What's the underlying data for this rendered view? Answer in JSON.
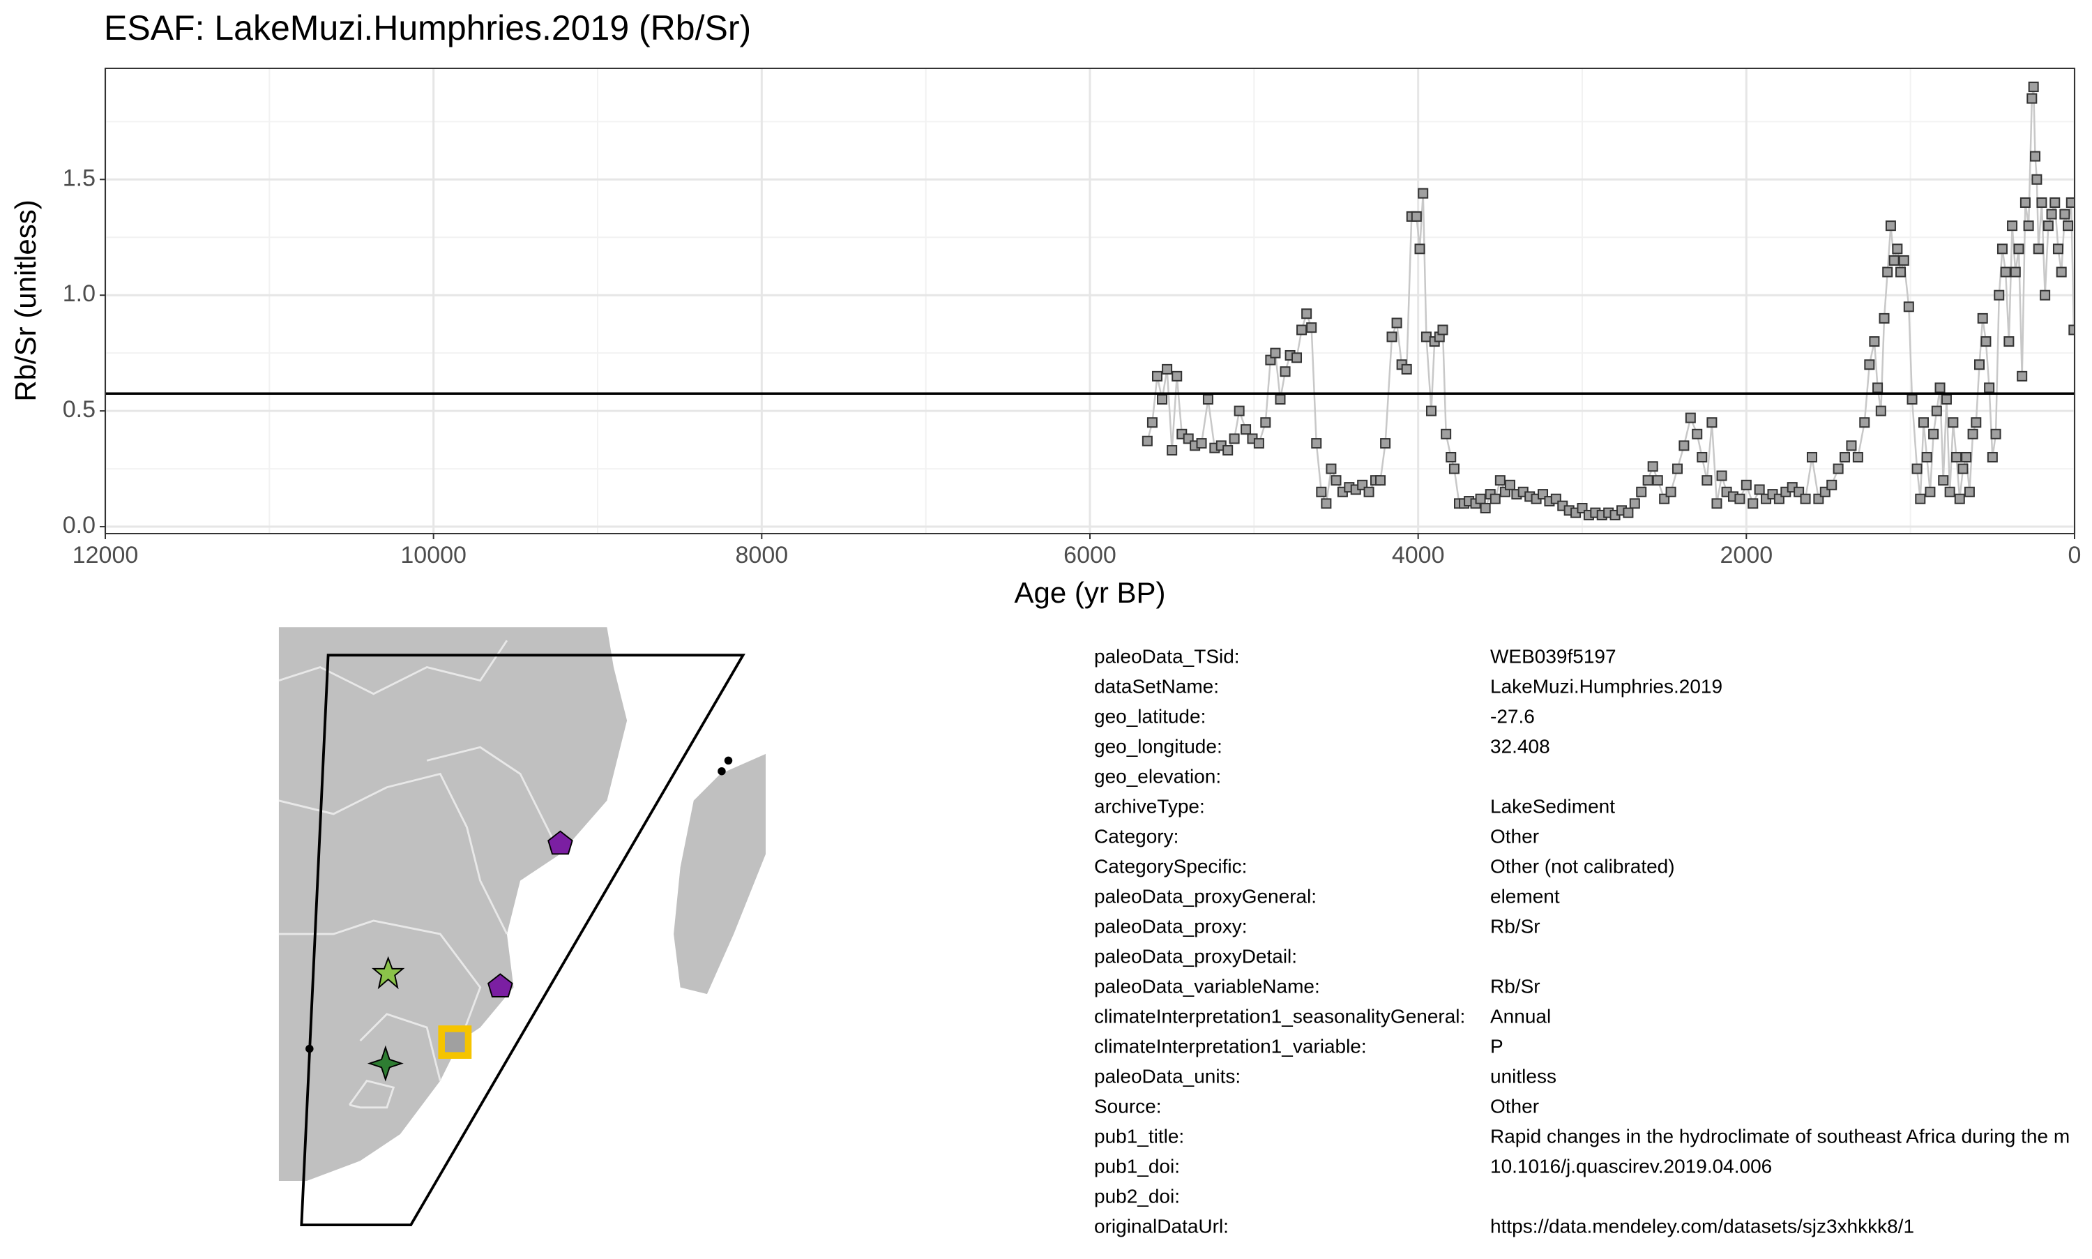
{
  "chart_data": {
    "type": "line",
    "title": "ESAF: LakeMuzi.Humphries.2019 (Rb/Sr)",
    "x_label": "Age (yr BP)",
    "y_label": "Rb/Sr (unitless)",
    "xlim": [
      12000,
      0
    ],
    "xticks": [
      12000,
      10000,
      8000,
      6000,
      4000,
      2000,
      0
    ],
    "xminorticks": [
      11000,
      9000,
      7000,
      5000,
      3000,
      1000
    ],
    "ylim": [
      -0.03,
      1.98
    ],
    "yticks": [
      {
        "value": 0,
        "label": "0.0"
      },
      0.5,
      {
        "value": 1,
        "label": "1.0"
      },
      1.5
    ],
    "yminorticks": [
      0.25,
      0.75,
      1.25,
      1.75
    ],
    "grid": true,
    "hline": 0.575,
    "series": [
      {
        "name": "Rb/Sr",
        "color": "#a0a0a0",
        "x": [
          5650,
          5620,
          5590,
          5560,
          5530,
          5500,
          5470,
          5440,
          5400,
          5360,
          5320,
          5280,
          5240,
          5200,
          5160,
          5120,
          5090,
          5050,
          5010,
          4970,
          4930,
          4900,
          4870,
          4840,
          4810,
          4780,
          4740,
          4710,
          4680,
          4650,
          4620,
          4590,
          4560,
          4530,
          4500,
          4460,
          4420,
          4380,
          4340,
          4300,
          4260,
          4230,
          4200,
          4160,
          4130,
          4100,
          4070,
          4040,
          4010,
          3990,
          3970,
          3950,
          3920,
          3900,
          3870,
          3850,
          3830,
          3800,
          3780,
          3750,
          3720,
          3690,
          3650,
          3620,
          3590,
          3560,
          3530,
          3500,
          3470,
          3440,
          3400,
          3360,
          3320,
          3280,
          3240,
          3200,
          3160,
          3120,
          3080,
          3040,
          3000,
          2960,
          2920,
          2880,
          2840,
          2800,
          2760,
          2720,
          2680,
          2640,
          2600,
          2570,
          2540,
          2500,
          2460,
          2420,
          2380,
          2340,
          2300,
          2270,
          2240,
          2210,
          2180,
          2150,
          2120,
          2080,
          2040,
          2000,
          1960,
          1920,
          1880,
          1840,
          1800,
          1760,
          1720,
          1680,
          1640,
          1600,
          1560,
          1520,
          1480,
          1440,
          1400,
          1360,
          1320,
          1280,
          1250,
          1220,
          1200,
          1180,
          1160,
          1140,
          1120,
          1100,
          1080,
          1060,
          1040,
          1010,
          990,
          960,
          940,
          920,
          900,
          880,
          860,
          840,
          820,
          800,
          780,
          760,
          740,
          720,
          700,
          680,
          660,
          640,
          620,
          600,
          580,
          560,
          540,
          520,
          500,
          480,
          460,
          440,
          420,
          400,
          380,
          360,
          340,
          320,
          300,
          280,
          260,
          250,
          240,
          230,
          220,
          200,
          180,
          160,
          140,
          120,
          100,
          80,
          60,
          40,
          20,
          5
        ],
        "values": [
          0.37,
          0.45,
          0.65,
          0.55,
          0.68,
          0.33,
          0.65,
          0.4,
          0.38,
          0.35,
          0.36,
          0.55,
          0.34,
          0.35,
          0.33,
          0.38,
          0.5,
          0.42,
          0.38,
          0.36,
          0.45,
          0.72,
          0.75,
          0.55,
          0.67,
          0.74,
          0.73,
          0.85,
          0.92,
          0.86,
          0.36,
          0.15,
          0.1,
          0.25,
          0.2,
          0.15,
          0.17,
          0.16,
          0.18,
          0.15,
          0.2,
          0.2,
          0.36,
          0.82,
          0.88,
          0.7,
          0.68,
          1.34,
          1.34,
          1.2,
          1.44,
          0.82,
          0.5,
          0.8,
          0.82,
          0.85,
          0.4,
          0.3,
          0.25,
          0.1,
          0.1,
          0.11,
          0.1,
          0.12,
          0.08,
          0.14,
          0.12,
          0.2,
          0.15,
          0.18,
          0.14,
          0.15,
          0.13,
          0.12,
          0.14,
          0.11,
          0.12,
          0.09,
          0.07,
          0.06,
          0.08,
          0.05,
          0.06,
          0.05,
          0.06,
          0.05,
          0.07,
          0.06,
          0.1,
          0.15,
          0.2,
          0.26,
          0.2,
          0.12,
          0.15,
          0.25,
          0.35,
          0.47,
          0.4,
          0.3,
          0.2,
          0.45,
          0.1,
          0.22,
          0.15,
          0.13,
          0.12,
          0.18,
          0.1,
          0.16,
          0.12,
          0.14,
          0.12,
          0.15,
          0.17,
          0.15,
          0.12,
          0.3,
          0.12,
          0.15,
          0.18,
          0.25,
          0.3,
          0.35,
          0.3,
          0.45,
          0.7,
          0.8,
          0.6,
          0.5,
          0.9,
          1.1,
          1.3,
          1.15,
          1.2,
          1.1,
          1.15,
          0.95,
          0.55,
          0.25,
          0.12,
          0.45,
          0.3,
          0.15,
          0.4,
          0.5,
          0.6,
          0.2,
          0.55,
          0.15,
          0.45,
          0.3,
          0.12,
          0.25,
          0.3,
          0.15,
          0.4,
          0.45,
          0.7,
          0.9,
          0.8,
          0.6,
          0.3,
          0.4,
          1.0,
          1.2,
          1.1,
          0.8,
          1.3,
          1.1,
          1.2,
          0.65,
          1.4,
          1.3,
          1.85,
          1.9,
          1.6,
          1.5,
          1.2,
          1.4,
          1.0,
          1.3,
          1.35,
          1.4,
          1.2,
          1.1,
          1.35,
          1.3,
          1.4,
          0.85
        ]
      }
    ]
  },
  "metadata": {
    "rows": [
      [
        "paleoData_TSid:",
        "WEB039f5197"
      ],
      [
        "dataSetName:",
        "LakeMuzi.Humphries.2019"
      ],
      [
        "geo_latitude:",
        "-27.6"
      ],
      [
        "geo_longitude:",
        "32.408"
      ],
      [
        "geo_elevation:"
      ],
      [
        "archiveType:",
        "LakeSediment"
      ],
      [
        "Category:",
        "Other"
      ],
      [
        "CategorySpecific:",
        "Other (not calibrated)"
      ],
      [
        "paleoData_proxyGeneral:",
        "element"
      ],
      [
        "paleoData_proxy:",
        "Rb/Sr"
      ],
      [
        "paleoData_proxyDetail:"
      ],
      [
        "paleoData_variableName:",
        "Rb/Sr"
      ],
      [
        "climateInterpretation1_seasonalityGeneral:",
        "Annual"
      ],
      [
        "climateInterpretation1_variable:",
        "P"
      ],
      [
        "paleoData_units:",
        "unitless"
      ],
      [
        "Source:",
        "Other"
      ],
      [
        "pub1_title:",
        "Rapid changes in the hydroclimate of southeast Africa during the m"
      ],
      [
        "pub1_doi:",
        "10.1016/j.quascirev.2019.04.006"
      ],
      [
        "pub2_doi:"
      ],
      [
        "originalDataUrl:",
        "https://data.mendeley.com/datasets/sjz3xhkkk8/1"
      ]
    ]
  }
}
